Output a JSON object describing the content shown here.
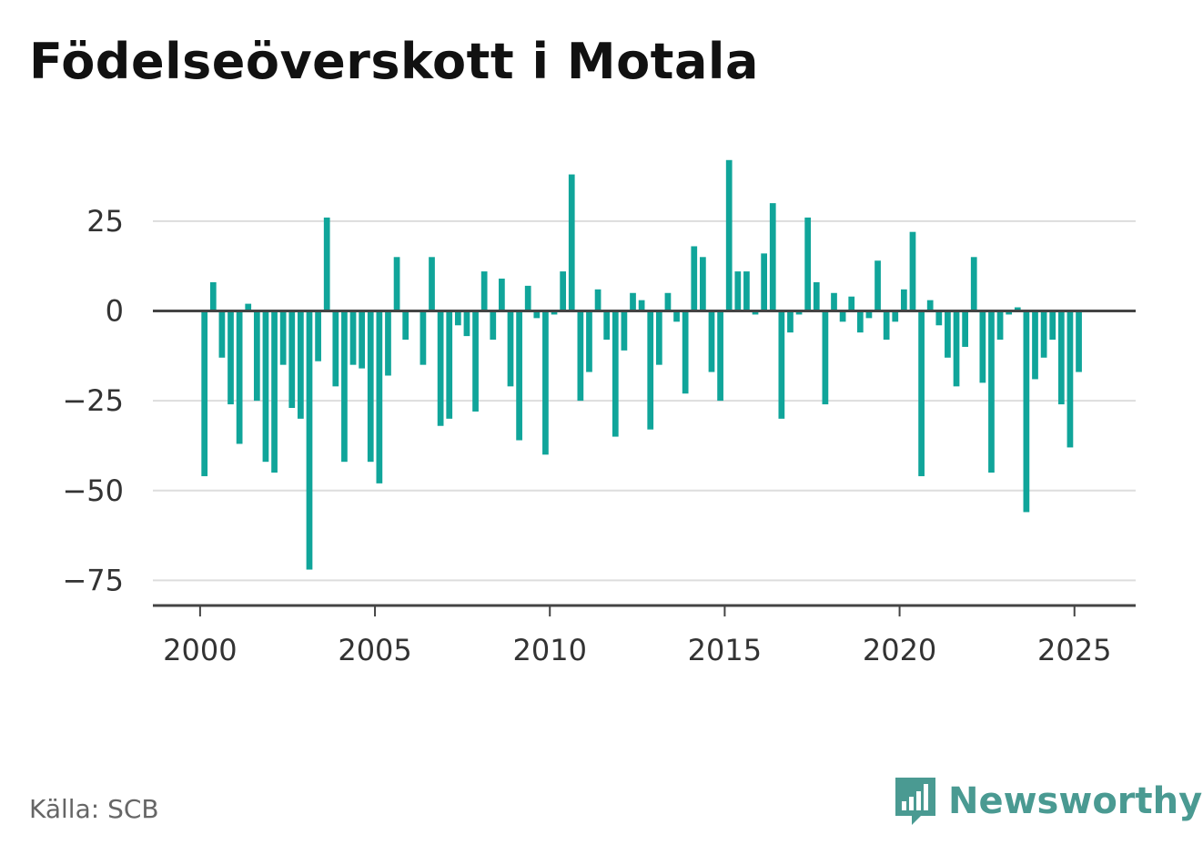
{
  "title": "Födelseöverskott i Motala",
  "source": "Källa: SCB",
  "brand": {
    "name": "Newsworthy",
    "logo_icon": "chart-speech-bubble-icon",
    "color": "#4a9a92"
  },
  "colors": {
    "bar": "#10a59a",
    "grid": "#dddddd",
    "zero_line": "#444444",
    "axis": "#444444"
  },
  "chart_data": {
    "type": "bar",
    "title": "Födelseöverskott i Motala",
    "xlabel": "",
    "ylabel": "",
    "ylim": [
      -82,
      46
    ],
    "yticks": [
      25,
      0,
      -25,
      -50,
      -75
    ],
    "ytick_labels": [
      "25",
      "0",
      "−25",
      "−50",
      "−75"
    ],
    "xlim": [
      1998.65,
      2026.75
    ],
    "xticks": [
      2000,
      2005,
      2010,
      2015,
      2020,
      2025
    ],
    "xtick_labels": [
      "2000",
      "2005",
      "2010",
      "2015",
      "2020",
      "2025"
    ],
    "grid": true,
    "x": [
      2000.125,
      2000.375,
      2000.625,
      2000.875,
      2001.125,
      2001.375,
      2001.625,
      2001.875,
      2002.125,
      2002.375,
      2002.625,
      2002.875,
      2003.125,
      2003.375,
      2003.625,
      2003.875,
      2004.125,
      2004.375,
      2004.625,
      2004.875,
      2005.125,
      2005.375,
      2005.625,
      2005.875,
      2006.125,
      2006.375,
      2006.625,
      2006.875,
      2007.125,
      2007.375,
      2007.625,
      2007.875,
      2008.125,
      2008.375,
      2008.625,
      2008.875,
      2009.125,
      2009.375,
      2009.625,
      2009.875,
      2010.125,
      2010.375,
      2010.625,
      2010.875,
      2011.125,
      2011.375,
      2011.625,
      2011.875,
      2012.125,
      2012.375,
      2012.625,
      2012.875,
      2013.125,
      2013.375,
      2013.625,
      2013.875,
      2014.125,
      2014.375,
      2014.625,
      2014.875,
      2015.125,
      2015.375,
      2015.625,
      2015.875,
      2016.125,
      2016.375,
      2016.625,
      2016.875,
      2017.125,
      2017.375,
      2017.625,
      2017.875,
      2018.125,
      2018.375,
      2018.625,
      2018.875,
      2019.125,
      2019.375,
      2019.625,
      2019.875,
      2020.125,
      2020.375,
      2020.625,
      2020.875,
      2021.125,
      2021.375,
      2021.625,
      2021.875,
      2022.125,
      2022.375,
      2022.625,
      2022.875,
      2023.125,
      2023.375,
      2023.625,
      2023.875,
      2024.125,
      2024.375,
      2024.625,
      2024.875,
      2025.125,
      2025.375
    ],
    "values": [
      -46,
      8,
      -13,
      -26,
      -37,
      2,
      -25,
      -42,
      -45,
      -15,
      -27,
      -30,
      -72,
      -14,
      26,
      -21,
      -42,
      -15,
      -16,
      -42,
      -48,
      -18,
      15,
      -8,
      0,
      -15,
      15,
      -32,
      -30,
      -4,
      -7,
      -28,
      11,
      -8,
      9,
      -21,
      -36,
      7,
      -2,
      -40,
      -1,
      11,
      38,
      -25,
      -17,
      6,
      -8,
      -35,
      -11,
      5,
      3,
      -33,
      -15,
      5,
      -3,
      -23,
      18,
      15,
      -17,
      -25,
      42,
      11,
      11,
      -1,
      16,
      30,
      -30,
      -6,
      -1,
      26,
      8,
      -26,
      5,
      -3,
      4,
      -6,
      -2,
      14,
      -8,
      -3,
      6,
      22,
      -46,
      3,
      -4,
      -13,
      -21,
      -10,
      15,
      -20,
      -45,
      -8,
      -1,
      1,
      -56,
      -19,
      -13,
      -8,
      -26,
      -38,
      -17,
      0
    ]
  }
}
